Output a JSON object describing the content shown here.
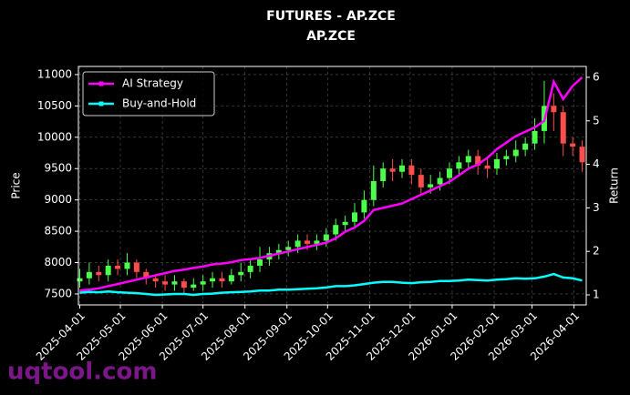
{
  "chart_data": {
    "type": "candlestick",
    "title": "FUTURES - AP.ZCE",
    "subtitle": "AP.ZCE",
    "ylabel": "Price",
    "y2label": "Return",
    "watermark": "uqtool.com",
    "x": [
      "2025-04-01",
      "2025-04-08",
      "2025-04-15",
      "2025-04-22",
      "2025-04-29",
      "2025-05-06",
      "2025-05-13",
      "2025-05-20",
      "2025-05-27",
      "2025-06-03",
      "2025-06-10",
      "2025-06-17",
      "2025-06-24",
      "2025-07-01",
      "2025-07-08",
      "2025-07-15",
      "2025-07-22",
      "2025-07-29",
      "2025-08-05",
      "2025-08-12",
      "2025-08-19",
      "2025-08-26",
      "2025-09-02",
      "2025-09-09",
      "2025-09-16",
      "2025-09-23",
      "2025-09-30",
      "2025-10-07",
      "2025-10-14",
      "2025-10-21",
      "2025-10-28",
      "2025-11-04",
      "2025-11-11",
      "2025-11-18",
      "2025-11-25",
      "2025-12-02",
      "2025-12-09",
      "2025-12-16",
      "2025-12-23",
      "2025-12-30",
      "2026-01-06",
      "2026-01-13",
      "2026-01-20",
      "2026-01-27",
      "2026-02-03",
      "2026-02-10",
      "2026-02-17",
      "2026-02-24",
      "2026-03-03",
      "2026-03-10",
      "2026-03-17",
      "2026-03-24",
      "2026-03-31",
      "2026-04-07"
    ],
    "open": [
      7700,
      7750,
      7850,
      7800,
      7950,
      7900,
      8000,
      7850,
      7750,
      7700,
      7650,
      7700,
      7600,
      7650,
      7700,
      7750,
      7700,
      7800,
      7850,
      7950,
      8050,
      8150,
      8200,
      8250,
      8350,
      8300,
      8350,
      8450,
      8600,
      8650,
      8800,
      9000,
      9300,
      9500,
      9450,
      9550,
      9400,
      9200,
      9250,
      9350,
      9500,
      9600,
      9700,
      9550,
      9500,
      9650,
      9700,
      9800,
      9900,
      10100,
      10500,
      10400,
      9900,
      9850
    ],
    "high": [
      7900,
      8000,
      7950,
      8050,
      8050,
      8150,
      8050,
      7900,
      7800,
      7800,
      7800,
      7750,
      7750,
      7800,
      7850,
      7850,
      7900,
      8000,
      8050,
      8250,
      8250,
      8300,
      8350,
      8450,
      8450,
      8450,
      8550,
      8700,
      8750,
      8950,
      9150,
      9550,
      9600,
      9650,
      9650,
      9650,
      9500,
      9400,
      9450,
      9600,
      9700,
      9800,
      9800,
      9650,
      9750,
      9800,
      9950,
      10000,
      10300,
      10900,
      10700,
      10500,
      10000,
      9950
    ],
    "low": [
      7600,
      7650,
      7700,
      7700,
      7800,
      7800,
      7750,
      7650,
      7600,
      7550,
      7550,
      7500,
      7550,
      7550,
      7600,
      7600,
      7650,
      7700,
      7750,
      7850,
      7950,
      8050,
      8100,
      8150,
      8200,
      8200,
      8250,
      8350,
      8500,
      8550,
      8700,
      8900,
      9200,
      9300,
      9350,
      9250,
      9100,
      9100,
      9150,
      9250,
      9400,
      9500,
      9400,
      9350,
      9400,
      9550,
      9600,
      9700,
      9800,
      9900,
      10100,
      9700,
      9700,
      9450
    ],
    "close": [
      7750,
      7850,
      7800,
      7950,
      7900,
      8000,
      7850,
      7750,
      7700,
      7650,
      7700,
      7600,
      7650,
      7700,
      7750,
      7700,
      7800,
      7850,
      7950,
      8050,
      8150,
      8200,
      8250,
      8350,
      8300,
      8350,
      8450,
      8600,
      8650,
      8800,
      9000,
      9300,
      9500,
      9450,
      9550,
      9400,
      9200,
      9250,
      9350,
      9500,
      9600,
      9700,
      9550,
      9500,
      9650,
      9700,
      9800,
      9900,
      10100,
      10500,
      10400,
      9900,
      9850,
      9600
    ],
    "up_color": "#4cff4c",
    "down_color": "#ff4c4c",
    "series": [
      {
        "name": "AI Strategy",
        "color": "#ff00ff",
        "axis": "y2",
        "values": [
          1.1,
          1.12,
          1.15,
          1.2,
          1.25,
          1.3,
          1.35,
          1.4,
          1.45,
          1.5,
          1.55,
          1.58,
          1.62,
          1.65,
          1.7,
          1.72,
          1.75,
          1.8,
          1.82,
          1.85,
          1.9,
          1.95,
          2.0,
          2.05,
          2.1,
          2.15,
          2.2,
          2.3,
          2.45,
          2.55,
          2.7,
          2.95,
          3.0,
          3.05,
          3.1,
          3.2,
          3.3,
          3.4,
          3.5,
          3.6,
          3.75,
          3.9,
          4.0,
          4.15,
          4.35,
          4.5,
          4.65,
          4.75,
          4.85,
          5.0,
          5.9,
          5.5,
          5.8,
          6.0
        ]
      },
      {
        "name": "Buy-and-Hold",
        "color": "#00ffff",
        "axis": "y2",
        "values": [
          1.05,
          1.07,
          1.06,
          1.08,
          1.06,
          1.05,
          1.04,
          1.02,
          1.0,
          1.01,
          1.02,
          1.02,
          1.0,
          1.02,
          1.03,
          1.05,
          1.06,
          1.07,
          1.08,
          1.1,
          1.1,
          1.12,
          1.12,
          1.13,
          1.14,
          1.15,
          1.17,
          1.2,
          1.2,
          1.22,
          1.25,
          1.28,
          1.3,
          1.3,
          1.28,
          1.27,
          1.29,
          1.3,
          1.32,
          1.32,
          1.33,
          1.35,
          1.34,
          1.33,
          1.35,
          1.36,
          1.38,
          1.37,
          1.38,
          1.42,
          1.48,
          1.4,
          1.38,
          1.33
        ]
      }
    ],
    "xlim": [
      "2025-03-31",
      "2026-04-10"
    ],
    "xticks": [
      "2025-04-01",
      "2025-05-01",
      "2025-06-01",
      "2025-07-01",
      "2025-08-01",
      "2025-09-01",
      "2025-10-01",
      "2025-11-01",
      "2025-12-01",
      "2026-01-01",
      "2026-02-01",
      "2026-03-01",
      "2026-04-01"
    ],
    "ylim": [
      7325,
      11130
    ],
    "yticks": [
      7500,
      8000,
      8500,
      9000,
      9500,
      10000,
      10500,
      11000
    ],
    "y2lim": [
      0.77,
      6.25
    ],
    "y2ticks": [
      1,
      2,
      3,
      4,
      5,
      6
    ],
    "grid": true,
    "legend": "upper left"
  }
}
